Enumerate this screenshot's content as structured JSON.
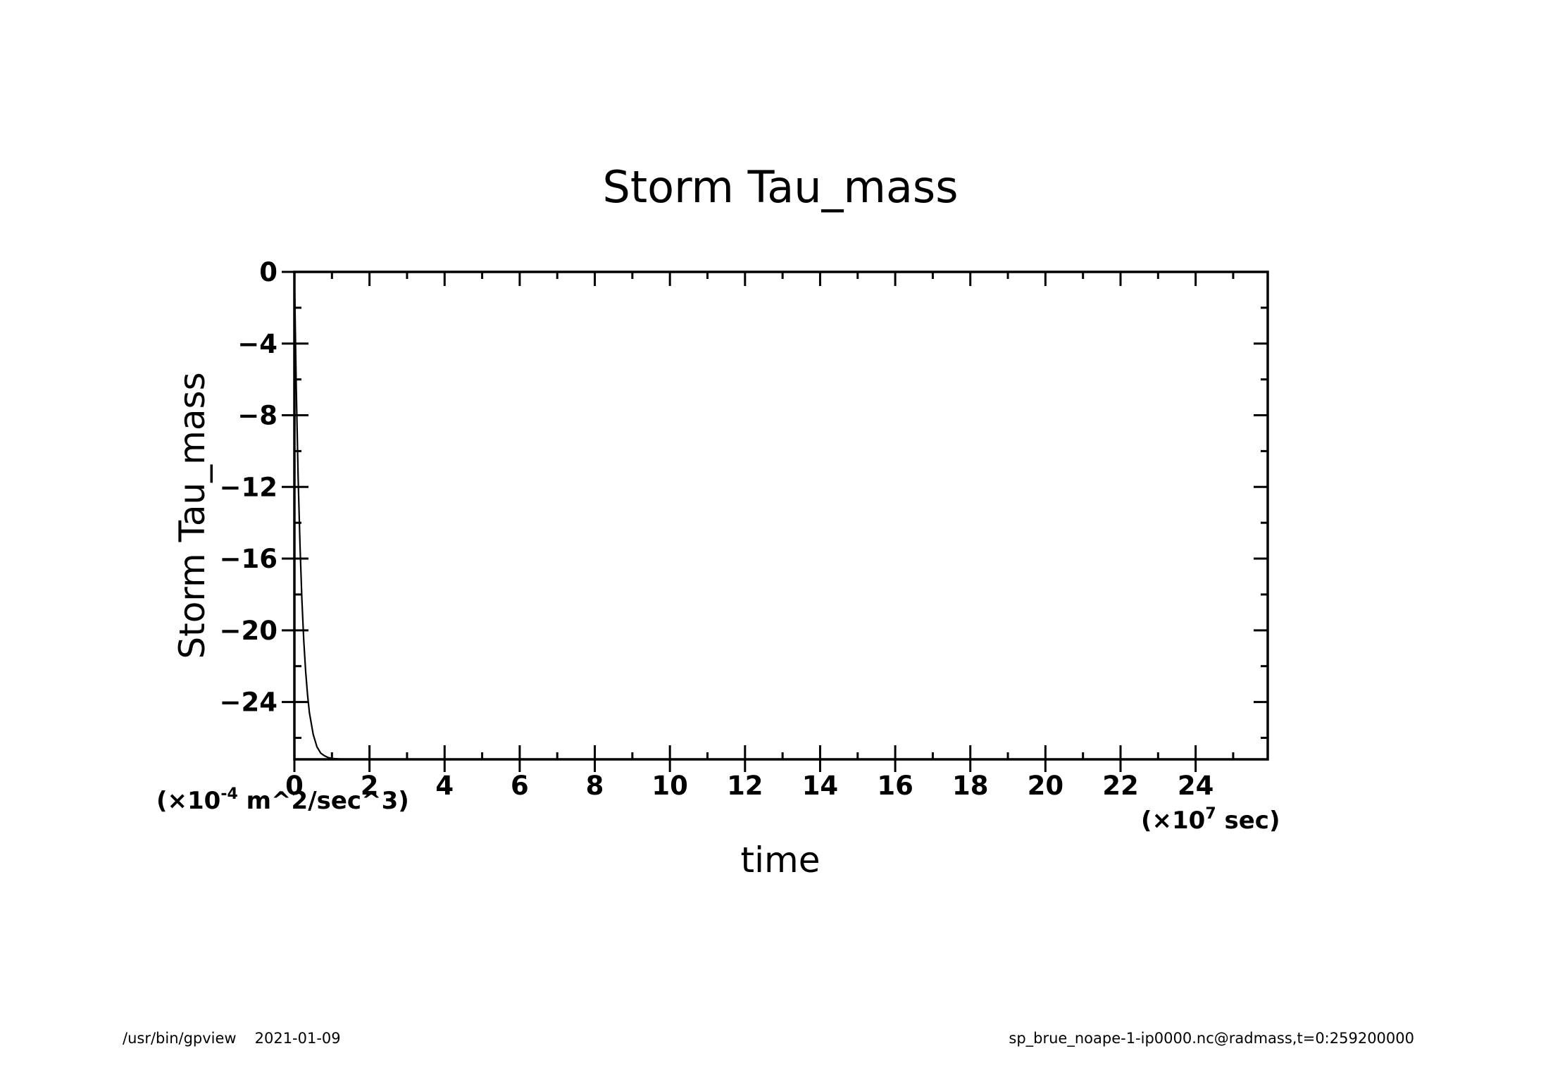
{
  "footer": {
    "program": "/usr/bin/gpview",
    "date": "2021-01-09",
    "source": "sp_brue_noape-1-ip0000.nc@radmass,t=0:259200000"
  },
  "chart_data": {
    "type": "line",
    "title": "Storm Tau_mass",
    "xlabel": "time",
    "ylabel": "Storm Tau_mass",
    "x_unit": {
      "prefix": "(×10",
      "exp": "7",
      "suffix": " sec)"
    },
    "y_unit": {
      "prefix": "(×10",
      "exp": "-4",
      "suffix": " m^2/sec^3)"
    },
    "xlim": [
      0,
      25.92
    ],
    "ylim": [
      -27.2,
      0
    ],
    "x_ticks": [
      0,
      2,
      4,
      6,
      8,
      10,
      12,
      14,
      16,
      18,
      20,
      22,
      24
    ],
    "y_ticks": [
      0,
      -4,
      -8,
      -12,
      -16,
      -20,
      -24
    ],
    "grid": false,
    "legend": "none",
    "line_color": "#000000",
    "series": [
      {
        "x": [
          0,
          0.05,
          0.1,
          0.15,
          0.2,
          0.25,
          0.3,
          0.35,
          0.4,
          0.5,
          0.6,
          0.7,
          0.8,
          0.9,
          1.0,
          1.2,
          1.5,
          2.0,
          3.0,
          5.0,
          10.0,
          15.0,
          20.0,
          25.92
        ],
        "y": [
          0,
          -6.5,
          -11.5,
          -15.3,
          -18.3,
          -20.6,
          -22.3,
          -23.6,
          -24.6,
          -25.8,
          -26.5,
          -26.85,
          -27.0,
          -27.1,
          -27.15,
          -27.18,
          -27.2,
          -27.2,
          -27.2,
          -27.2,
          -27.2,
          -27.2,
          -27.2,
          -27.2
        ]
      }
    ]
  }
}
